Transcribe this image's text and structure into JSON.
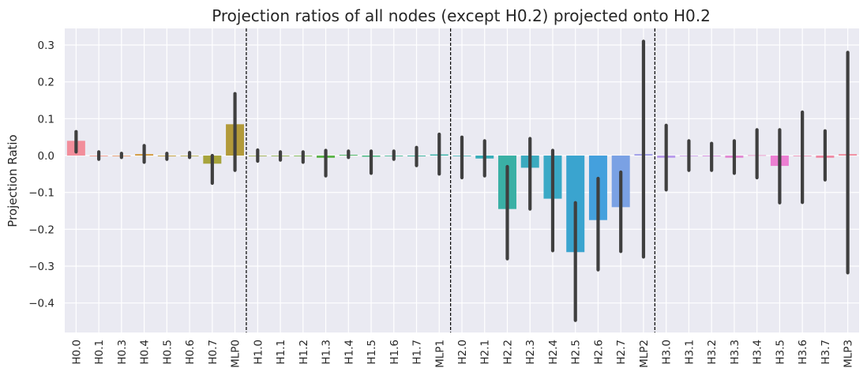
{
  "chart_data": {
    "type": "bar",
    "title": "Projection ratios of all nodes (except H0.2) projected onto H0.2",
    "xlabel": "",
    "ylabel": "Projection Ratio",
    "ylim": [
      -0.48,
      0.345
    ],
    "yticks": [
      0.3,
      0.2,
      0.1,
      0.0,
      -0.1,
      -0.2,
      -0.3,
      -0.4
    ],
    "ytick_labels": [
      "0.3",
      "0.2",
      "0.1",
      "0.0",
      "−0.1",
      "−0.2",
      "−0.3",
      "−0.4"
    ],
    "grid": true,
    "legend": "none",
    "background_color": "#eaeaf2",
    "separators_after": [
      "MLP0",
      "MLP1",
      "MLP2"
    ],
    "categories": [
      "H0.0",
      "H0.1",
      "H0.3",
      "H0.4",
      "H0.5",
      "H0.6",
      "H0.7",
      "MLP0",
      "H1.0",
      "H1.1",
      "H1.2",
      "H1.3",
      "H1.4",
      "H1.5",
      "H1.6",
      "H1.7",
      "MLP1",
      "H2.0",
      "H2.1",
      "H2.2",
      "H2.3",
      "H2.4",
      "H2.5",
      "H2.6",
      "H2.7",
      "MLP2",
      "H3.0",
      "H3.1",
      "H3.2",
      "H3.3",
      "H3.4",
      "H3.5",
      "H3.6",
      "H3.7",
      "MLP3"
    ],
    "values": [
      0.04,
      0.0,
      0.0,
      0.004,
      -0.002,
      0.0,
      -0.022,
      0.085,
      0.0,
      0.0,
      -0.001,
      -0.006,
      0.002,
      -0.003,
      0.0,
      -0.002,
      0.003,
      -0.001,
      -0.008,
      -0.145,
      -0.033,
      -0.117,
      -0.262,
      -0.175,
      -0.14,
      0.004,
      -0.006,
      -0.001,
      -0.002,
      -0.006,
      0.001,
      -0.028,
      0.0,
      -0.006,
      0.004
    ],
    "error_low": [
      0.01,
      -0.01,
      -0.005,
      -0.018,
      -0.01,
      -0.005,
      -0.075,
      -0.04,
      -0.015,
      -0.012,
      -0.018,
      -0.055,
      -0.005,
      -0.048,
      -0.01,
      -0.027,
      -0.05,
      -0.06,
      -0.055,
      -0.28,
      -0.145,
      -0.258,
      -0.447,
      -0.31,
      -0.26,
      -0.275,
      -0.093,
      -0.04,
      -0.04,
      -0.048,
      -0.06,
      -0.128,
      -0.127,
      -0.066,
      -0.318
    ],
    "error_high": [
      0.065,
      0.01,
      0.006,
      0.027,
      0.006,
      0.008,
      0.0,
      0.168,
      0.015,
      0.01,
      0.01,
      0.014,
      0.012,
      0.012,
      0.012,
      0.022,
      0.058,
      0.05,
      0.04,
      -0.03,
      0.046,
      0.014,
      -0.128,
      -0.062,
      -0.045,
      0.31,
      0.082,
      0.04,
      0.033,
      0.04,
      0.07,
      0.07,
      0.118,
      0.067,
      0.28
    ],
    "colors": [
      "#f28e9b",
      "#f08d7a",
      "#e7925b",
      "#d39a3c",
      "#c3a03a",
      "#b2a537",
      "#a7a43c",
      "#b29a3a",
      "#93a53b",
      "#84ab3a",
      "#6eb13c",
      "#5ab347",
      "#48b45e",
      "#3eb57a",
      "#36b58c",
      "#36b39a",
      "#35b1a6",
      "#36b0b0",
      "#37adb9",
      "#3ab0a5",
      "#3aaabf",
      "#3aa9c6",
      "#3aa4cf",
      "#44a0dd",
      "#7aa1e4",
      "#9f9de8",
      "#b89aeb",
      "#c995ea",
      "#d78fe2",
      "#e289d3",
      "#e888c2",
      "#ec7fd2",
      "#ee87b2",
      "#ef8aa5",
      "#f08c9e"
    ]
  }
}
